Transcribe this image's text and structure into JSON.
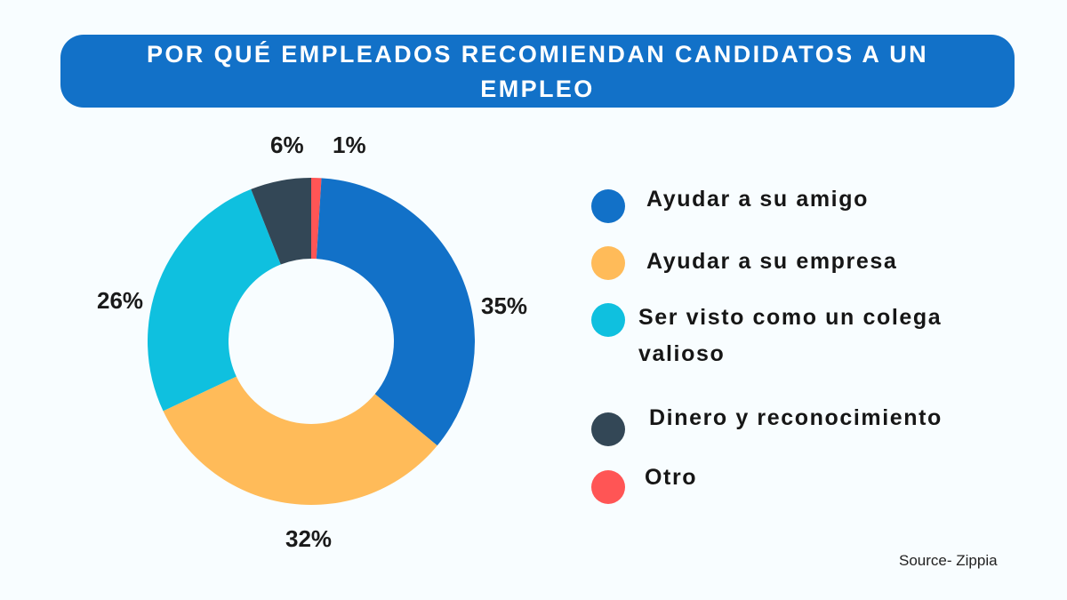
{
  "title": {
    "line1": "POR QUÉ EMPLEADOS RECOMIENDAN CANDIDATOS A UN",
    "line2": "EMPLEO"
  },
  "source": "Source- Zippia",
  "colors": {
    "banner": "#1271c8",
    "background": "#f8fdff"
  },
  "chart_data": {
    "type": "pie",
    "subtype": "donut",
    "title": "POR QUÉ EMPLEADOS RECOMIENDAN CANDIDATOS A UN EMPLEO",
    "categories": [
      "Ayudar a su amigo",
      "Ayudar a su empresa",
      "Ser visto como un colega valioso",
      "Dinero y reconocimiento",
      "Otro"
    ],
    "values": [
      35,
      32,
      26,
      6,
      1
    ],
    "unit": "%",
    "colors": [
      "#1271c8",
      "#ffbb59",
      "#0fc0df",
      "#334756",
      "#ff5555"
    ],
    "data_labels": [
      "35%",
      "32%",
      "26%",
      "6%",
      "1%"
    ],
    "start_angle_deg": 0,
    "direction": "clockwise",
    "first_slice_drawn": "Otro",
    "legend_position": "right",
    "source": "Source- Zippia"
  },
  "legend": {
    "items": [
      {
        "label": "Ayudar a su amigo",
        "color": "#1271c8"
      },
      {
        "label": "Ayudar a su empresa",
        "color": "#ffbb59"
      },
      {
        "label": "Ser visto como un colega",
        "label_line2": "valioso",
        "color": "#0fc0df"
      },
      {
        "label": "Dinero y reconocimiento",
        "color": "#334756"
      },
      {
        "label": "Otro",
        "color": "#ff5555"
      }
    ]
  },
  "labels": {
    "amigo": "35%",
    "empresa": "32%",
    "colega": "26%",
    "dinero": "6%",
    "otro": "1%"
  }
}
